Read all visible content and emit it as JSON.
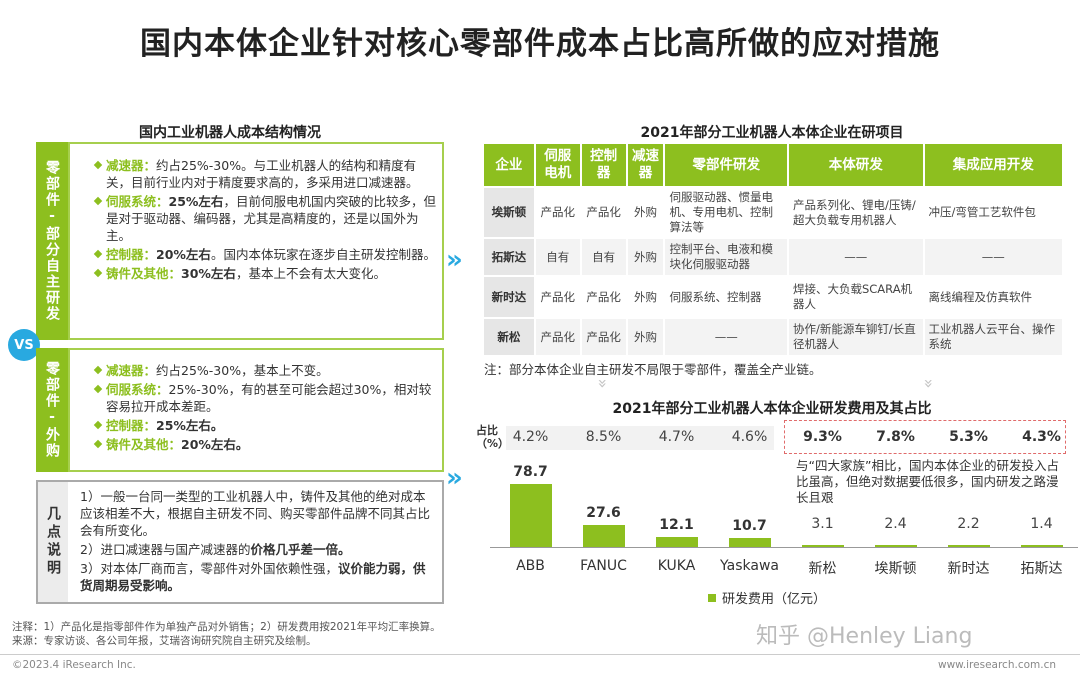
{
  "title": "国内本体企业针对核心零部件成本占比高所做的应对措施",
  "left": {
    "subtitle": "国内工业机器人成本结构情况",
    "box1_label": "零部件-部分自主研发",
    "box1_items": [
      {
        "key": "减速器：",
        "text": "约占25%-30%。与工业机器人的结构和精度有关，目前行业内对于精度要求高的，多采用进口减速器。",
        "bold": ""
      },
      {
        "key": "伺服系统：",
        "bold": "25%左右",
        "text": "，目前伺服电机国内突破的比较多，但是对于驱动器、编码器，尤其是高精度的，还是以国外为主。"
      },
      {
        "key": "控制器：",
        "bold": "20%左右",
        "text": "。国内本体玩家在逐步自主研发控制器。"
      },
      {
        "key": "铸件及其他：",
        "bold": "30%左右",
        "text": "，基本上不会有太大变化。"
      }
    ],
    "vs": "VS",
    "box2_label": "零部件-外购",
    "box2_items": [
      {
        "key": "减速器：",
        "bold": "",
        "text": "约占25%-30%，基本上不变。"
      },
      {
        "key": "伺服系统：",
        "bold": "",
        "text": "25%-30%，有的甚至可能会超过30%，相对较容易拉开成本差距。"
      },
      {
        "key": "控制器：",
        "bold": "25%左右。",
        "text": ""
      },
      {
        "key": "铸件及其他：",
        "bold": "20%左右。",
        "text": ""
      }
    ],
    "box3_label": "几点说明",
    "notes": [
      "1）一般一台同一类型的工业机器人中，铸件及其他的绝对成本应该相差不大，根据自主研发不同、购买零部件品牌不同其占比会有所变化。",
      "2）进口减速器与国产减速器的",
      "价格几乎差一倍。",
      "3）对本体厂商而言，零部件对外国依赖性强，",
      "议价能力弱，供货周期易受影响。"
    ]
  },
  "right": {
    "table_title": "2021年部分工业机器人本体企业在研项目",
    "headers": [
      "企业",
      "伺服电机",
      "控制器",
      "减速器",
      "零部件研发",
      "本体研发",
      "集成应用开发"
    ],
    "rows": [
      [
        "埃斯顿",
        "产品化",
        "产品化",
        "外购",
        "伺服驱动器、惯量电机、专用电机、控制算法等",
        "产品系列化、锂电/压铸/超大负载专用机器人",
        "冲压/弯管工艺软件包"
      ],
      [
        "拓斯达",
        "自有",
        "自有",
        "外购",
        "控制平台、电液和模块化伺服驱动器",
        "——",
        "——"
      ],
      [
        "新时达",
        "产品化",
        "产品化",
        "外购",
        "伺服系统、控制器",
        "焊接、大负载SCARA机器人",
        "离线编程及仿真软件"
      ],
      [
        "新松",
        "产品化",
        "产品化",
        "外购",
        "——",
        "协作/新能源车铆钉/长直径机器人",
        "工业机器人云平台、操作系统"
      ]
    ],
    "table_note": "注：部分本体企业自主研发不局限于零部件，覆盖全产业链。",
    "chart_title": "2021年部分工业机器人本体企业研发费用及其占比",
    "ratio_label": "占比（%）",
    "callout": "与“四大家族”相比，国内本体企业的研发投入占比虽高，但绝对数据要低很多，国内研发之路漫长且艰"
  },
  "chart_data": {
    "type": "bar",
    "categories": [
      "ABB",
      "FANUC",
      "KUKA",
      "Yaskawa",
      "新松",
      "埃斯顿",
      "新时达",
      "拓斯达"
    ],
    "values": [
      78.7,
      27.6,
      12.1,
      10.7,
      3.1,
      2.4,
      2.2,
      1.4
    ],
    "value_labels": [
      "78.7",
      "27.6",
      "12.1",
      "10.7",
      "3.1",
      "2.4",
      "2.2",
      "1.4"
    ],
    "ratios": [
      "4.2%",
      "8.5%",
      "4.7%",
      "4.6%",
      "9.3%",
      "7.8%",
      "5.3%",
      "4.3%"
    ],
    "legend": "研发费用（亿元）",
    "color": "#8dbf1f",
    "ylim": [
      0,
      80
    ]
  },
  "footer": {
    "note": "注释：1）产品化是指零部件作为单独产品对外销售；2）研发费用按2021年平均汇率换算。",
    "source": "来源：专家访谈、各公司年报，艾瑞咨询研究院自主研究及绘制。",
    "copyright": "©2023.4 iResearch Inc.",
    "site": "www.iresearch.com.cn",
    "watermark": "知乎 @Henley Liang"
  }
}
